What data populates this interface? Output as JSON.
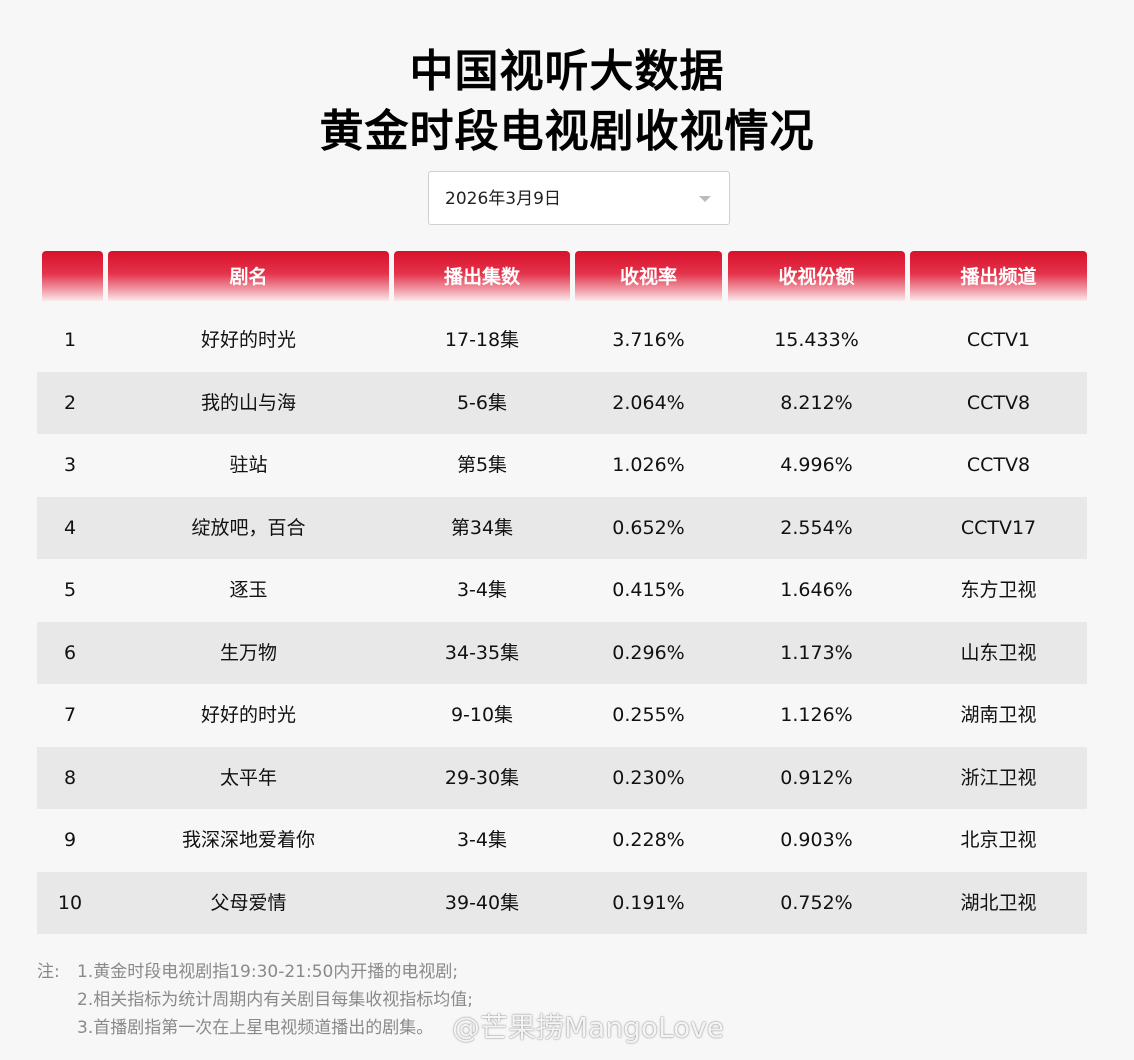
{
  "title": {
    "line1": "中国视听大数据",
    "line2": "黄金时段电视剧收视情况"
  },
  "date_select": {
    "value": "2026年3月9日"
  },
  "table": {
    "headers": [
      "",
      "剧名",
      "播出集数",
      "收视率",
      "收视份额",
      "播出频道"
    ],
    "rows": [
      [
        "1",
        "好好的时光",
        "17-18集",
        "3.716%",
        "15.433%",
        "CCTV1"
      ],
      [
        "2",
        "我的山与海",
        "5-6集",
        "2.064%",
        "8.212%",
        "CCTV8"
      ],
      [
        "3",
        "驻站",
        "第5集",
        "1.026%",
        "4.996%",
        "CCTV8"
      ],
      [
        "4",
        "绽放吧，百合",
        "第34集",
        "0.652%",
        "2.554%",
        "CCTV17"
      ],
      [
        "5",
        "逐玉",
        "3-4集",
        "0.415%",
        "1.646%",
        "东方卫视"
      ],
      [
        "6",
        "生万物",
        "34-35集",
        "0.296%",
        "1.173%",
        "山东卫视"
      ],
      [
        "7",
        "好好的时光",
        "9-10集",
        "0.255%",
        "1.126%",
        "湖南卫视"
      ],
      [
        "8",
        "太平年",
        "29-30集",
        "0.230%",
        "0.912%",
        "浙江卫视"
      ],
      [
        "9",
        "我深深地爱着你",
        "3-4集",
        "0.228%",
        "0.903%",
        "北京卫视"
      ],
      [
        "10",
        "父母爱情",
        "39-40集",
        "0.191%",
        "0.752%",
        "湖北卫视"
      ]
    ]
  },
  "notes": {
    "prefix": "注:",
    "lines": [
      "1.黄金时段电视剧指19:30-21:50内开播的电视剧;",
      "2.相关指标为统计周期内有关剧目每集收视指标均值;",
      "3.首播剧指第一次在上星电视频道播出的剧集。"
    ]
  },
  "watermark": "@芒果捞MangoLove",
  "colors": {
    "header_red": "#d8112b",
    "row_alt": "#e8e8e8",
    "background": "#f7f7f7"
  }
}
